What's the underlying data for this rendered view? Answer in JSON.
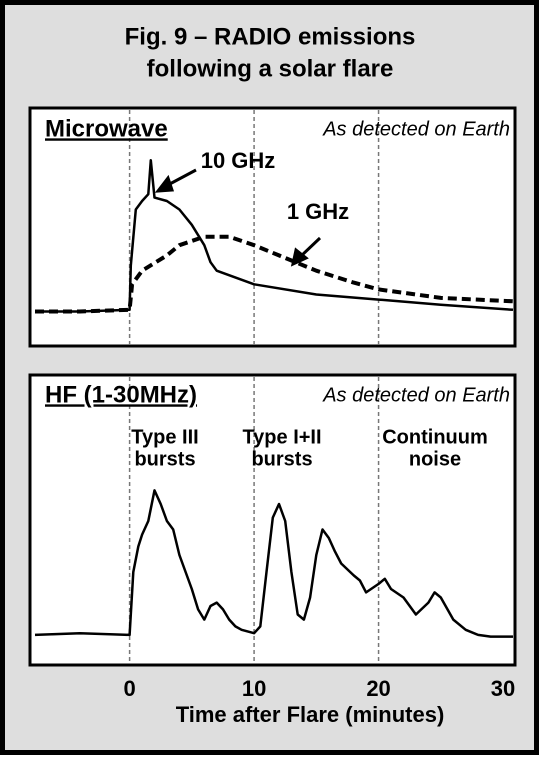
{
  "title": [
    "Fig. 9 – RADIO emissions",
    "following a solar flare"
  ],
  "chart_data": [
    {
      "type": "line",
      "title": "Microwave",
      "subtitle": "As detected on Earth",
      "xlim": [
        -7.6,
        30.8
      ],
      "ylim": [
        0,
        100
      ],
      "vlines": [
        0,
        10,
        20
      ],
      "series": [
        {
          "name": "10 GHz",
          "color": "#000000",
          "dash": false,
          "x": [
            -7.6,
            -4,
            0,
            0.1,
            0.5,
            1,
            1.5,
            1.7,
            2,
            3,
            4,
            5,
            6,
            6.5,
            7,
            10,
            15,
            20,
            25,
            30.8
          ],
          "values": [
            5,
            5,
            6,
            32,
            65,
            70,
            74,
            94,
            72,
            70,
            65,
            56,
            44,
            34,
            29,
            21,
            15,
            12,
            9,
            6
          ]
        },
        {
          "name": "1 GHz",
          "color": "#000000",
          "dash": true,
          "x": [
            -7.6,
            -4,
            0,
            0.2,
            1,
            3,
            4,
            6,
            8,
            10,
            12,
            15,
            18,
            20,
            25,
            30.8
          ],
          "values": [
            5,
            5,
            6,
            21,
            29,
            38,
            44,
            49,
            49,
            44,
            38,
            29,
            22,
            18,
            13,
            11
          ]
        }
      ]
    },
    {
      "type": "line",
      "title": "HF (1-30MHz)",
      "subtitle": "As detected on Earth",
      "xlim": [
        -7.6,
        30.8
      ],
      "ylim": [
        0,
        100
      ],
      "vlines": [
        0,
        10,
        20
      ],
      "xticks": [
        0,
        10,
        20,
        30
      ],
      "xlabel": "Time after Flare (minutes)",
      "annotations": [
        [
          "Type III",
          "bursts"
        ],
        [
          "Type I+II",
          "bursts"
        ],
        [
          "Continuum",
          "noise"
        ]
      ],
      "series": [
        {
          "color": "#000000",
          "dash": false,
          "x": [
            -7.6,
            -4,
            0,
            0.3,
            0.7,
            1,
            1.5,
            2,
            2.5,
            3,
            3.5,
            4,
            4.5,
            5,
            5.5,
            6,
            6.5,
            7,
            7.5,
            8,
            8.5,
            9,
            10,
            10.5,
            11,
            11.5,
            12,
            12.5,
            13,
            13.5,
            14,
            14.5,
            15,
            15.5,
            16,
            16.5,
            17,
            18,
            18.5,
            19,
            20,
            20.5,
            21,
            22,
            22.5,
            23,
            24,
            24.5,
            25,
            26,
            27,
            28,
            29,
            30.8
          ],
          "values": [
            3,
            4,
            3,
            40,
            55,
            62,
            70,
            88,
            80,
            70,
            65,
            50,
            40,
            30,
            18,
            12,
            20,
            22,
            18,
            12,
            8,
            6,
            4,
            8,
            40,
            72,
            80,
            70,
            40,
            15,
            12,
            25,
            50,
            65,
            60,
            52,
            45,
            38,
            35,
            28,
            33,
            36,
            30,
            25,
            20,
            15,
            22,
            28,
            25,
            12,
            6,
            3,
            2,
            2
          ]
        }
      ]
    }
  ]
}
